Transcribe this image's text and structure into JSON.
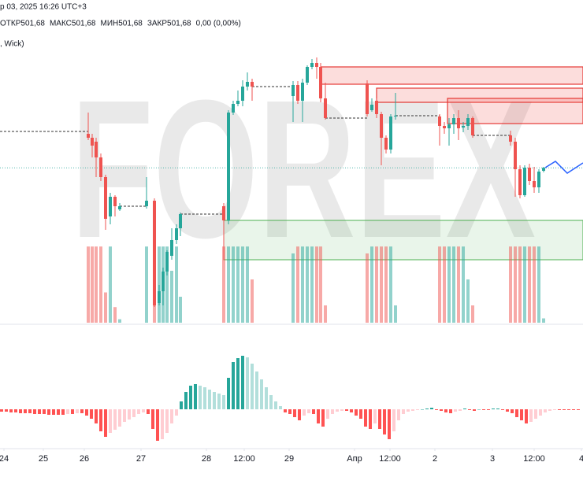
{
  "header": {
    "date": "р 03, 2025 16:26 UTC+3",
    "ohlc": [
      "ОТКР501,68",
      "МАКС501,68",
      "МИН501,68",
      "ЗАКР501,68",
      "0,00 (0,00%)"
    ],
    "indicator": ", Wick)"
  },
  "chart_data": {
    "type": "candlestick",
    "watermark": "FOREX",
    "up_color": "#26a69a",
    "down_color": "#ef5350",
    "xlim": [
      0,
      148
    ],
    "ylim": [
      482,
      518
    ],
    "xticks": [
      {
        "value": 1,
        "label": "24"
      },
      {
        "value": 11,
        "label": "25"
      },
      {
        "value": 21.4,
        "label": "26"
      },
      {
        "value": 35.8,
        "label": "27"
      },
      {
        "value": 52.4,
        "label": "28"
      },
      {
        "value": 62,
        "label": "12:00"
      },
      {
        "value": 73.4,
        "label": "29"
      },
      {
        "value": 90,
        "label": "Апр"
      },
      {
        "value": 99,
        "label": "12:00"
      },
      {
        "value": 110.4,
        "label": "2"
      },
      {
        "value": 125,
        "label": "3"
      },
      {
        "value": 135.6,
        "label": "12:00"
      },
      {
        "value": 147.6,
        "label": "4"
      }
    ],
    "candles": {
      "x": [
        22.4,
        23.4,
        24.4,
        25.6,
        26.8,
        28.0,
        29.2,
        30.4,
        37.2,
        39.2,
        40.4,
        41.4,
        42.4,
        43.6,
        44.8,
        45.8,
        56.8,
        58.0,
        59.2,
        60.4,
        61.6,
        62.8,
        64.0,
        74.4,
        75.6,
        76.8,
        78.0,
        79.2,
        80.4,
        81.4,
        82.6,
        93.2,
        94.4,
        95.6,
        96.8,
        98.0,
        99.2,
        100.4,
        111.6,
        112.8,
        114.0,
        115.2,
        116.4,
        117.6,
        118.8,
        120.0,
        129.6,
        130.8,
        132.0,
        133.2,
        134.4,
        135.6,
        136.8,
        138.0
      ],
      "open": [
        506.0,
        505.5,
        505.0,
        503.0,
        500.5,
        495.5,
        498.0,
        496.4,
        496.8,
        497.5,
        484.5,
        486.0,
        488.5,
        490.5,
        492.5,
        494.0,
        496.8,
        495.0,
        508.7,
        509.8,
        510.2,
        512.0,
        512.6,
        510.8,
        512.2,
        510.2,
        512.5,
        514.5,
        515.0,
        514.5,
        510.5,
        512.4,
        509.0,
        510.2,
        508.5,
        505.5,
        504.0,
        508.2,
        508.2,
        507.0,
        506.7,
        507.2,
        508.0,
        506.8,
        507.0,
        508.0,
        505.8,
        505.0,
        501.5,
        498.2,
        501.7,
        500.0,
        499.2,
        501.3
      ],
      "high": [
        508.7,
        506.0,
        505.5,
        503.5,
        500.8,
        498.5,
        498.2,
        497.2,
        500.5,
        497.8,
        486.8,
        489.0,
        491.2,
        494.0,
        494.5,
        496.0,
        497.2,
        509.0,
        510.2,
        511.5,
        512.8,
        513.8,
        513.0,
        512.7,
        512.7,
        513.0,
        514.7,
        515.5,
        515.7,
        515.0,
        512.5,
        512.8,
        510.5,
        510.5,
        508.8,
        505.8,
        508.5,
        511.2,
        508.5,
        507.5,
        508.0,
        508.5,
        509.0,
        507.5,
        508.5,
        508.2,
        506.4,
        505.5,
        502.0,
        502.0,
        502.2,
        501.8,
        501.5,
        501.8
      ],
      "low": [
        505.2,
        503.0,
        500.5,
        500.0,
        493.8,
        494.5,
        495.5,
        496.2,
        496.5,
        484.0,
        484.2,
        484.2,
        488.0,
        490.0,
        492.0,
        493.0,
        490.0,
        494.5,
        508.4,
        509.5,
        509.5,
        511.5,
        510.2,
        507.5,
        509.8,
        507.5,
        512.2,
        514.2,
        513.0,
        510.0,
        507.8,
        508.2,
        508.8,
        508.0,
        502.0,
        503.5,
        503.5,
        507.8,
        504.5,
        506.0,
        504.5,
        506.0,
        505.2,
        506.2,
        506.5,
        505.5,
        504.5,
        498.0,
        497.8,
        498.0,
        499.5,
        498.5,
        498.5,
        501.1
      ],
      "close": [
        505.5,
        504.5,
        503.0,
        500.5,
        495.2,
        498.0,
        496.8,
        496.8,
        497.5,
        484.2,
        486.0,
        488.5,
        491.0,
        492.5,
        494.0,
        495.8,
        495.0,
        508.7,
        509.8,
        510.2,
        512.0,
        512.6,
        512.0,
        512.2,
        510.2,
        512.5,
        514.5,
        515.0,
        514.5,
        510.5,
        508.0,
        508.5,
        509.7,
        508.5,
        505.5,
        504.0,
        508.2,
        508.3,
        507.0,
        506.7,
        507.2,
        508.0,
        506.7,
        507.0,
        508.0,
        505.8,
        505.0,
        501.5,
        498.2,
        501.7,
        500.0,
        499.2,
        501.2,
        501.68
      ]
    },
    "volume": {
      "vlim": [
        0,
        100
      ],
      "values": [
        88,
        88,
        88,
        88,
        35,
        88,
        18,
        4,
        88,
        88,
        88,
        88,
        88,
        60,
        88,
        30,
        88,
        88,
        88,
        88,
        88,
        88,
        50,
        80,
        88,
        88,
        88,
        88,
        88,
        88,
        20,
        80,
        88,
        88,
        88,
        88,
        88,
        20,
        88,
        88,
        88,
        88,
        88,
        88,
        50,
        20,
        88,
        88,
        88,
        88,
        88,
        88,
        88,
        5
      ]
    },
    "prior_close_level": 506.3,
    "zones": [
      {
        "kind": "resistance",
        "x": 81.6,
        "top": 514.5,
        "bottom": 512.3
      },
      {
        "kind": "resistance",
        "x": 95.6,
        "top": 511.8,
        "bottom": 510.0
      },
      {
        "kind": "resistance",
        "x": 113.6,
        "top": 510.5,
        "bottom": 507.3
      },
      {
        "kind": "support",
        "x": 56.8,
        "top": 495.0,
        "bottom": 490.0
      }
    ],
    "projection": {
      "color": "#2962ff",
      "x": [
        138.4,
        141,
        144,
        148
      ],
      "values": [
        501.7,
        502.5,
        501.0,
        502.3
      ]
    },
    "oscillator": {
      "ylim": [
        -45,
        75
      ],
      "colors": {
        "pos_up": "#26a69a",
        "pos_down": "#b2dfdb",
        "neg_down": "#ff5252",
        "neg_up": "#ffcdd2"
      },
      "values": [
        -3,
        -3,
        -4,
        -4,
        -5,
        -5,
        -5,
        -6,
        -6,
        -6,
        -7,
        -7,
        -7,
        -7,
        -6,
        -6,
        -5,
        -5,
        -8,
        -12,
        -18,
        -28,
        -35,
        -30,
        -26,
        -22,
        -16,
        -13,
        -10,
        -6,
        -4,
        -6,
        -25,
        -40,
        -38,
        -30,
        -18,
        -8,
        10,
        22,
        30,
        32,
        30,
        28,
        25,
        22,
        20,
        18,
        40,
        60,
        65,
        68,
        66,
        58,
        48,
        38,
        28,
        18,
        10,
        4,
        -4,
        -6,
        -10,
        -14,
        -8,
        -5,
        -6,
        -18,
        -22,
        -12,
        -6,
        -3,
        -2,
        -2,
        -4,
        -8,
        -12,
        -22,
        -25,
        -18,
        -25,
        -32,
        -38,
        -28,
        -14,
        -6,
        -3,
        -2,
        -1,
        0,
        1,
        2,
        -1,
        -2,
        -4,
        -5,
        -3,
        -2,
        1,
        -1,
        -2,
        0,
        -1,
        -1,
        1,
        1,
        -1,
        -3,
        -5,
        -10,
        -14,
        -18,
        -16,
        -12,
        -8,
        -4,
        -2,
        -1,
        -1,
        -1,
        -1,
        -1,
        -1
      ]
    }
  }
}
